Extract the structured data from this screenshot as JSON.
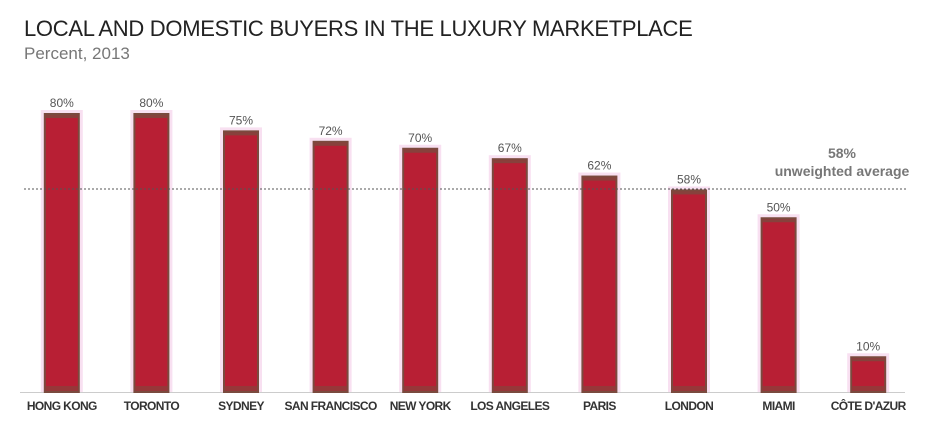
{
  "chart_data": {
    "type": "bar",
    "title": "LOCAL AND DOMESTIC BUYERS IN THE LUXURY MARKETPLACE",
    "subtitle": "Percent, 2013",
    "categories": [
      "HONG KONG",
      "TORONTO",
      "SYDNEY",
      "SAN FRANCISCO",
      "NEW YORK",
      "LOS ANGELES",
      "PARIS",
      "LONDON",
      "MIAMI",
      "CÔTE D'AZUR"
    ],
    "values": [
      80,
      80,
      75,
      72,
      70,
      67,
      62,
      58,
      50,
      10
    ],
    "value_labels": [
      "80%",
      "80%",
      "75%",
      "72%",
      "70%",
      "67%",
      "62%",
      "58%",
      "50%",
      "10%"
    ],
    "reference_line": {
      "value": 58,
      "value_label": "58%",
      "label": "unweighted average",
      "style": "dotted"
    },
    "ylim": [
      0,
      80
    ],
    "grid": false,
    "legend": "none",
    "colors": {
      "bar": "#b81f34",
      "bar_edge": "#7a4a3e",
      "bar_glow": "#f3c6e6",
      "value_label": "#555555",
      "category_label": "#333333",
      "reference_line": "#555555",
      "reference_label": "#777777"
    }
  }
}
